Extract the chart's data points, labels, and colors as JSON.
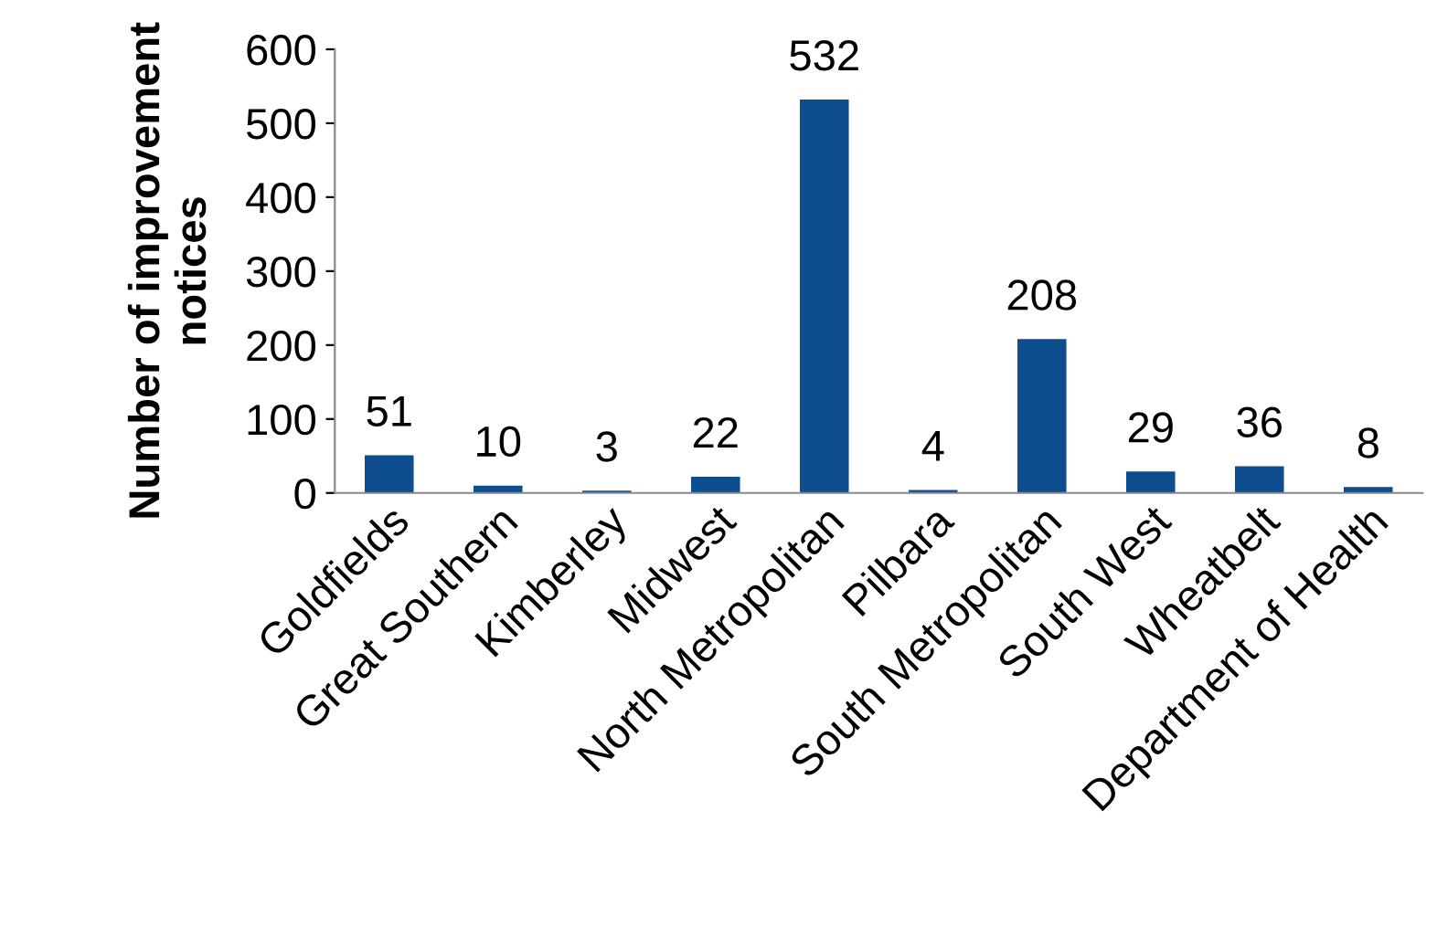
{
  "chart_data": {
    "type": "bar",
    "ylabel": "Number of improvement\nnotices",
    "categories": [
      "Goldfields",
      "Great Southern",
      "Kimberley",
      "Midwest",
      "North Metropolitan",
      "Pilbara",
      "South Metropolitan",
      "South West",
      "Wheatbelt",
      "Department of Health"
    ],
    "values": [
      51,
      10,
      3,
      22,
      532,
      4,
      208,
      29,
      36,
      8
    ],
    "color": "#0f4e8e",
    "ylim": [
      0,
      600
    ],
    "yticks": [
      0,
      100,
      200,
      300,
      400,
      500,
      600
    ],
    "grid": false,
    "data_labels": true
  }
}
